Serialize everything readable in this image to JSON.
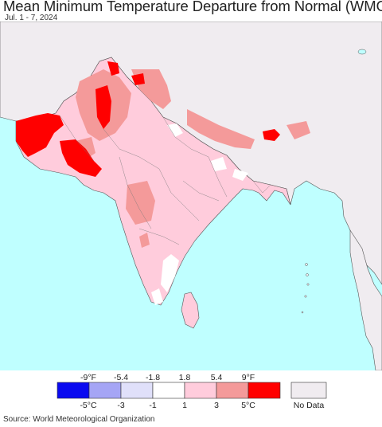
{
  "header": {
    "title": "Mean Minimum Temperature Departure from Normal (WMO)",
    "date_range": "Jul. 1 - 7, 2024"
  },
  "map": {
    "region": "South Asia",
    "colors": {
      "ocean": "#bfffff",
      "land_no_data": "#f0ecf0",
      "border": "#555555"
    }
  },
  "legend": {
    "f_ticks": [
      "-9°F",
      "-5.4",
      "-1.8",
      "1.8",
      "5.4",
      "9°F"
    ],
    "c_ticks": [
      "-5°C",
      "-3",
      "-1",
      "1",
      "3",
      "5°C"
    ],
    "bins": [
      {
        "color": "#0a0af0"
      },
      {
        "color": "#a5a5f5"
      },
      {
        "color": "#e0e0fa"
      },
      {
        "color": "#ffffff"
      },
      {
        "color": "#ffccdc"
      },
      {
        "color": "#f49a9a"
      },
      {
        "color": "#ff0000"
      }
    ],
    "no_data_label": "No Data",
    "no_data_color": "#f0ecf0"
  },
  "footer": {
    "source": "Source: World Meteorological Organization"
  }
}
